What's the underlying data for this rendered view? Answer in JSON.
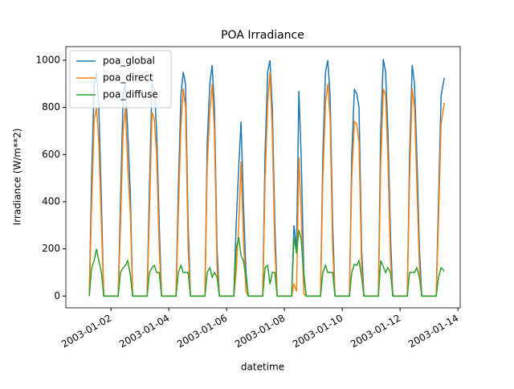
{
  "chart_data": {
    "type": "line",
    "title": "POA Irradiance",
    "xlabel": "datetime",
    "ylabel": "Irradiance (W/m**2)",
    "x": [
      0.25,
      0.33,
      0.42,
      0.5,
      0.58,
      0.67,
      0.75,
      1.25,
      1.33,
      1.42,
      1.5,
      1.58,
      1.67,
      1.75,
      2.25,
      2.33,
      2.42,
      2.5,
      2.58,
      2.67,
      2.75,
      3.25,
      3.33,
      3.42,
      3.5,
      3.58,
      3.67,
      3.75,
      4.25,
      4.33,
      4.42,
      4.5,
      4.58,
      4.67,
      4.75,
      5.25,
      5.33,
      5.42,
      5.5,
      5.58,
      5.67,
      5.75,
      6.25,
      6.33,
      6.42,
      6.5,
      6.58,
      6.67,
      6.75,
      7.25,
      7.33,
      7.42,
      7.5,
      7.58,
      7.67,
      7.75,
      8.25,
      8.33,
      8.42,
      8.5,
      8.58,
      8.67,
      8.75,
      9.25,
      9.33,
      9.42,
      9.5,
      9.58,
      9.67,
      9.75,
      10.25,
      10.33,
      10.42,
      10.5,
      10.58,
      10.67,
      10.75,
      11.25,
      11.33,
      11.42,
      11.5,
      11.58,
      11.67,
      11.75,
      12.25,
      12.33,
      12.42,
      12.53
    ],
    "series": [
      {
        "name": "poa_global",
        "color": "#1f77b4",
        "values": [
          0,
          500,
          900,
          950,
          800,
          400,
          0,
          0,
          400,
          850,
          900,
          700,
          440,
          0,
          0,
          450,
          900,
          880,
          700,
          300,
          0,
          0,
          450,
          850,
          950,
          900,
          300,
          0,
          0,
          650,
          900,
          980,
          800,
          200,
          0,
          0,
          300,
          550,
          740,
          400,
          100,
          0,
          0,
          600,
          950,
          1000,
          800,
          300,
          0,
          0,
          300,
          200,
          870,
          590,
          100,
          0,
          0,
          600,
          950,
          1000,
          850,
          300,
          0,
          0,
          600,
          875,
          860,
          800,
          200,
          0,
          0,
          700,
          1005,
          950,
          700,
          250,
          0,
          0,
          600,
          980,
          900,
          600,
          200,
          0,
          0,
          400,
          850,
          925
        ]
      },
      {
        "name": "poa_direct",
        "color": "#ff7f0e",
        "values": [
          0,
          380,
          750,
          800,
          650,
          300,
          0,
          0,
          300,
          700,
          800,
          550,
          350,
          0,
          0,
          350,
          780,
          750,
          600,
          200,
          0,
          0,
          350,
          720,
          880,
          800,
          200,
          0,
          0,
          550,
          780,
          900,
          700,
          120,
          0,
          0,
          100,
          300,
          570,
          250,
          20,
          0,
          0,
          480,
          820,
          950,
          700,
          200,
          0,
          0,
          50,
          20,
          590,
          350,
          10,
          0,
          0,
          500,
          820,
          900,
          750,
          200,
          0,
          0,
          500,
          740,
          730,
          650,
          120,
          0,
          0,
          550,
          880,
          850,
          580,
          150,
          0,
          0,
          500,
          880,
          800,
          480,
          120,
          0,
          0,
          320,
          730,
          820
        ]
      },
      {
        "name": "poa_diffuse",
        "color": "#2ca02c",
        "values": [
          0,
          120,
          150,
          200,
          150,
          100,
          0,
          0,
          100,
          120,
          130,
          150,
          90,
          0,
          0,
          100,
          120,
          130,
          100,
          100,
          0,
          0,
          100,
          130,
          100,
          100,
          100,
          0,
          0,
          100,
          120,
          80,
          100,
          80,
          0,
          0,
          200,
          250,
          170,
          150,
          80,
          0,
          0,
          120,
          130,
          50,
          100,
          100,
          0,
          0,
          250,
          180,
          280,
          240,
          90,
          0,
          0,
          100,
          130,
          100,
          100,
          100,
          0,
          0,
          100,
          135,
          130,
          150,
          80,
          0,
          0,
          150,
          125,
          100,
          120,
          100,
          0,
          0,
          100,
          100,
          100,
          120,
          80,
          0,
          0,
          80,
          120,
          105
        ]
      }
    ],
    "xlim": [
      -0.56,
      13.08
    ],
    "ylim": [
      -50,
      1058
    ],
    "xticks": [
      {
        "value": 1,
        "label": "2003-01-02"
      },
      {
        "value": 3,
        "label": "2003-01-04"
      },
      {
        "value": 5,
        "label": "2003-01-06"
      },
      {
        "value": 7,
        "label": "2003-01-08"
      },
      {
        "value": 9,
        "label": "2003-01-10"
      },
      {
        "value": 11,
        "label": "2003-01-12"
      },
      {
        "value": 13,
        "label": "2003-01-14"
      }
    ],
    "yticks": [
      0,
      200,
      400,
      600,
      800,
      1000
    ],
    "legend": "upper left"
  }
}
